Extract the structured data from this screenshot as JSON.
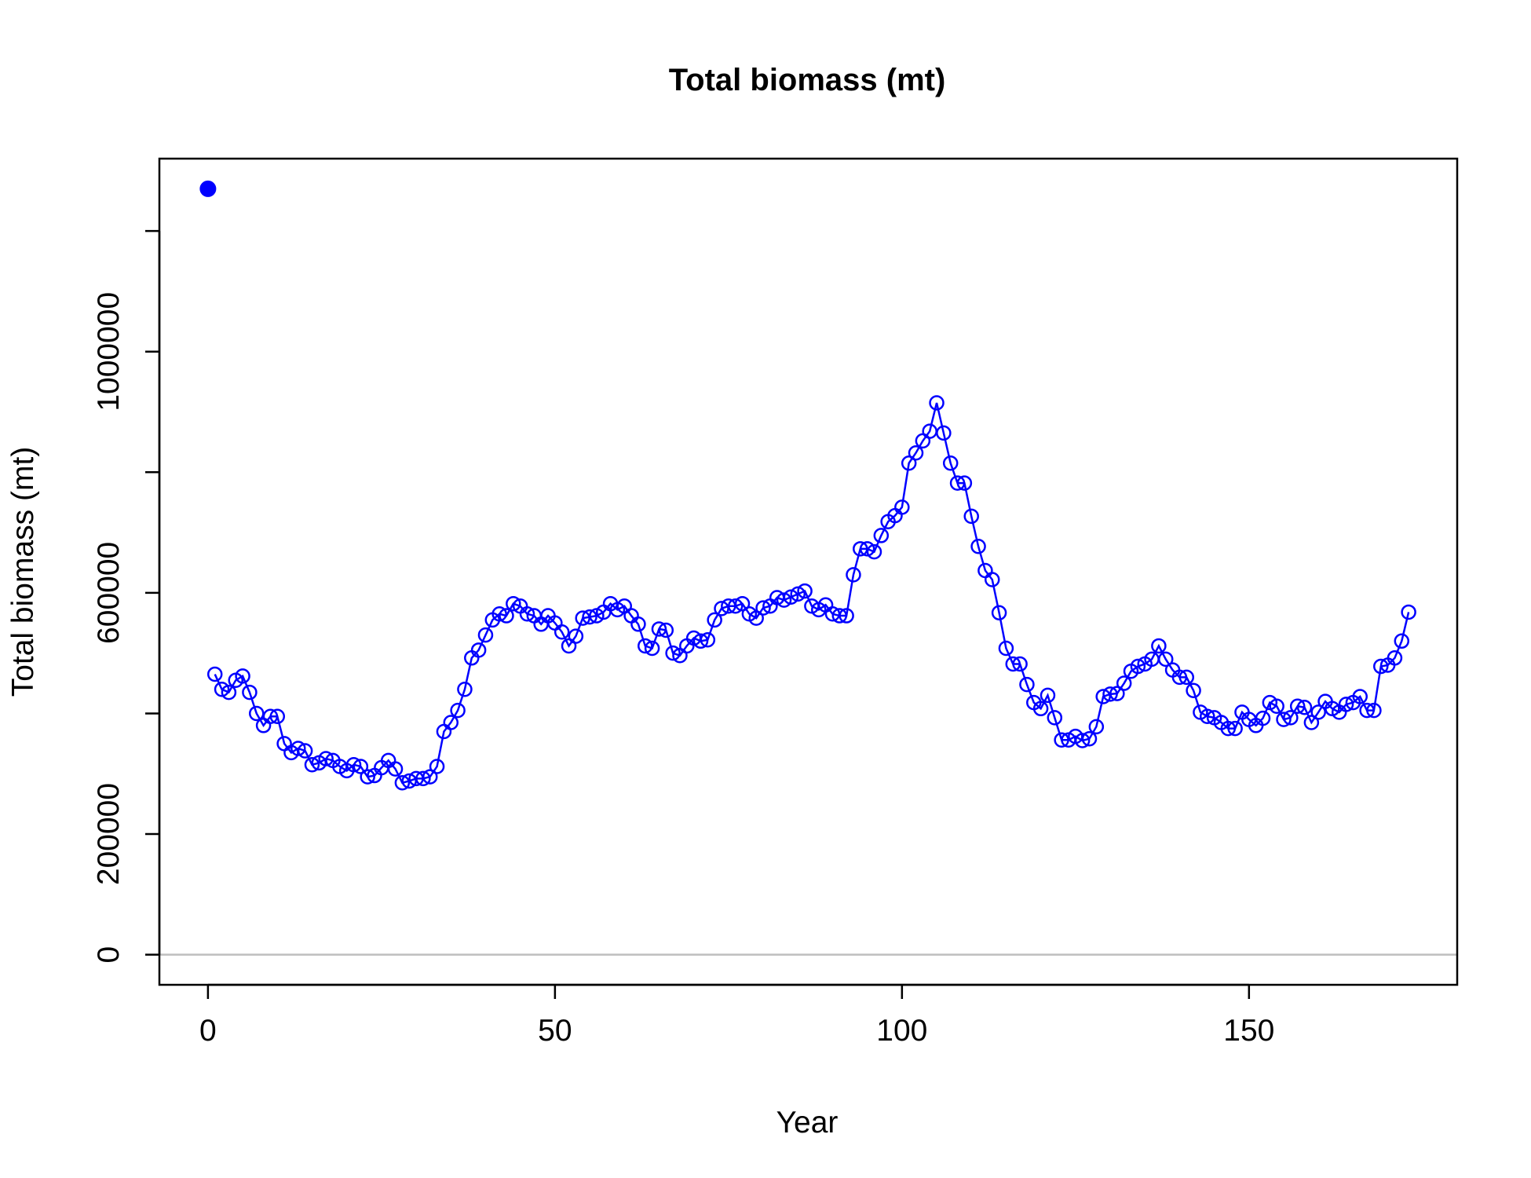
{
  "chart_data": {
    "type": "line",
    "title": "Total biomass (mt)",
    "xlabel": "Year",
    "ylabel": "Total biomass (mt)",
    "xlim": [
      -7,
      180
    ],
    "ylim": [
      -50000,
      1320000
    ],
    "x_ticks": [
      0,
      50,
      100,
      150
    ],
    "x_tick_labels": [
      "0",
      "50",
      "100",
      "150"
    ],
    "y_ticks": [
      0,
      200000,
      400000,
      600000,
      800000,
      1000000,
      1200000
    ],
    "y_tick_labels": [
      "0",
      "200000",
      "",
      "600000",
      "",
      "1000000",
      ""
    ],
    "zero_line": 0,
    "colors": {
      "series": "#0000ff",
      "zero_line": "#bebebe",
      "axes": "#000000"
    },
    "initial_point": {
      "x": 0,
      "y": 1270000,
      "marker": "filled-circle"
    },
    "series": [
      {
        "marker": "open-circle",
        "x": [
          1,
          2,
          3,
          4,
          5,
          6,
          7,
          8,
          9,
          10,
          11,
          12,
          13,
          14,
          15,
          16,
          17,
          18,
          19,
          20,
          21,
          22,
          23,
          24,
          25,
          26,
          27,
          28,
          29,
          30,
          31,
          32,
          33,
          34,
          35,
          36,
          37,
          38,
          39,
          40,
          41,
          42,
          43,
          44,
          45,
          46,
          47,
          48,
          49,
          50,
          51,
          52,
          53,
          54,
          55,
          56,
          57,
          58,
          59,
          60,
          61,
          62,
          63,
          64,
          65,
          66,
          67,
          68,
          69,
          70,
          71,
          72,
          73,
          74,
          75,
          76,
          77,
          78,
          79,
          80,
          81,
          82,
          83,
          84,
          85,
          86,
          87,
          88,
          89,
          90,
          91,
          92,
          93,
          94,
          95,
          96,
          97,
          98,
          99,
          100,
          101,
          102,
          103,
          104,
          105,
          106,
          107,
          108,
          109,
          110,
          111,
          112,
          113,
          114,
          115,
          116,
          117,
          118,
          119,
          120,
          121,
          122,
          123,
          124,
          125,
          126,
          127,
          128,
          129,
          130,
          131,
          132,
          133,
          134,
          135,
          136,
          137,
          138,
          139,
          140,
          141,
          142,
          143,
          144,
          145,
          146,
          147,
          148,
          149,
          150,
          151,
          152,
          153,
          154,
          155,
          156,
          157,
          158,
          159,
          160,
          161,
          162,
          163,
          164,
          165,
          166,
          167,
          168,
          169,
          170,
          171,
          172,
          173
        ],
        "y": [
          465000,
          440000,
          435000,
          455000,
          462000,
          435000,
          400000,
          380000,
          395000,
          395000,
          350000,
          335000,
          342000,
          338000,
          315000,
          318000,
          325000,
          322000,
          312000,
          305000,
          315000,
          312000,
          295000,
          297000,
          310000,
          322000,
          308000,
          285000,
          288000,
          292000,
          292000,
          295000,
          312000,
          370000,
          385000,
          405000,
          440000,
          492000,
          505000,
          530000,
          555000,
          565000,
          562000,
          582000,
          578000,
          565000,
          562000,
          548000,
          562000,
          550000,
          535000,
          512000,
          528000,
          558000,
          560000,
          562000,
          568000,
          582000,
          572000,
          578000,
          562000,
          548000,
          512000,
          508000,
          540000,
          538000,
          500000,
          496000,
          512000,
          525000,
          520000,
          522000,
          555000,
          574000,
          578000,
          578000,
          582000,
          565000,
          558000,
          575000,
          578000,
          592000,
          588000,
          593000,
          598000,
          603000,
          578000,
          572000,
          580000,
          565000,
          562000,
          562000,
          630000,
          673000,
          673000,
          668000,
          695000,
          718000,
          728000,
          742000,
          815000,
          832000,
          852000,
          868000,
          915000,
          865000,
          815000,
          782000,
          782000,
          727000,
          677000,
          637000,
          622000,
          567000,
          508000,
          482000,
          482000,
          448000,
          418000,
          408000,
          430000,
          393000,
          356000,
          356000,
          362000,
          355000,
          358000,
          378000,
          428000,
          432000,
          433000,
          450000,
          470000,
          478000,
          482000,
          490000,
          512000,
          490000,
          472000,
          460000,
          460000,
          438000,
          402000,
          395000,
          393000,
          385000,
          375000,
          375000,
          402000,
          390000,
          380000,
          392000,
          418000,
          412000,
          390000,
          393000,
          412000,
          410000,
          385000,
          402000,
          420000,
          408000,
          402000,
          415000,
          418000,
          428000,
          405000,
          405000,
          478000,
          480000,
          492000,
          520000,
          568000
        ]
      }
    ]
  }
}
